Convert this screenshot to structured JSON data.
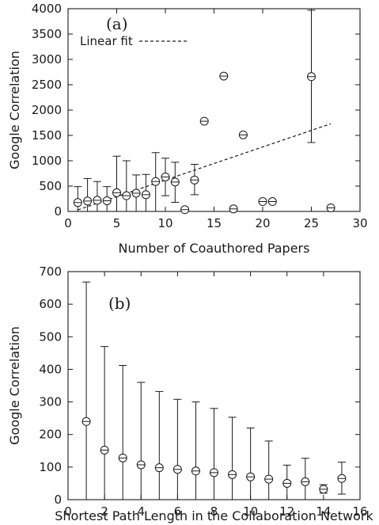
{
  "chart_data": [
    {
      "type": "scatter",
      "panel_label": "(a)",
      "xlabel": "Number of Coauthored Papers",
      "ylabel": "Google Correlation",
      "xlim": [
        0,
        30
      ],
      "ylim": [
        0,
        4000
      ],
      "xticks": [
        0,
        5,
        10,
        15,
        20,
        25,
        30
      ],
      "yticks": [
        0,
        500,
        1000,
        1500,
        2000,
        2500,
        3000,
        3500,
        4000
      ],
      "legend": {
        "position": "top-left",
        "entries": [
          {
            "label": "Linear fit",
            "style": "dashed"
          }
        ]
      },
      "series": [
        {
          "marker": "circle-with-bar",
          "x": [
            1,
            2,
            3,
            4,
            5,
            6,
            7,
            8,
            9,
            10,
            11,
            12,
            13,
            14,
            16,
            17,
            18,
            20,
            21,
            25,
            27
          ],
          "y": [
            175,
            205,
            220,
            210,
            370,
            310,
            360,
            330,
            590,
            680,
            580,
            35,
            620,
            1780,
            2670,
            50,
            1510,
            195,
            195,
            2660,
            70
          ],
          "y_upper": [
            490,
            650,
            590,
            490,
            1090,
            1000,
            720,
            730,
            1160,
            1050,
            970,
            null,
            930,
            null,
            null,
            null,
            null,
            null,
            null,
            3970,
            null
          ],
          "y_lower": [
            0,
            0,
            0,
            0,
            0,
            0,
            0,
            0,
            0,
            310,
            180,
            null,
            330,
            null,
            null,
            null,
            null,
            null,
            null,
            1360,
            null
          ]
        }
      ],
      "fit_line": {
        "label": "Linear fit",
        "x": [
          1,
          27
        ],
        "y": [
          30,
          1730
        ]
      }
    },
    {
      "type": "scatter",
      "panel_label": "(b)",
      "xlabel": "Shortest Path Length in the Collaboration Network",
      "ylabel": "Google Correlation",
      "xlim": [
        0,
        16
      ],
      "ylim": [
        0,
        700
      ],
      "xticks": [
        0,
        2,
        4,
        6,
        8,
        10,
        12,
        14,
        16
      ],
      "yticks": [
        0,
        100,
        200,
        300,
        400,
        500,
        600,
        700
      ],
      "series": [
        {
          "marker": "circle-with-bar",
          "x": [
            1,
            2,
            3,
            4,
            5,
            6,
            7,
            8,
            9,
            10,
            11,
            12,
            13,
            14,
            15
          ],
          "y": [
            240,
            152,
            128,
            107,
            98,
            93,
            88,
            83,
            77,
            70,
            63,
            50,
            55,
            32,
            65
          ],
          "y_upper": [
            668,
            470,
            412,
            360,
            332,
            308,
            300,
            280,
            253,
            220,
            180,
            106,
            127,
            46,
            115
          ],
          "y_lower": [
            0,
            0,
            0,
            0,
            0,
            0,
            0,
            0,
            0,
            0,
            0,
            0,
            0,
            20,
            17
          ]
        }
      ]
    }
  ]
}
